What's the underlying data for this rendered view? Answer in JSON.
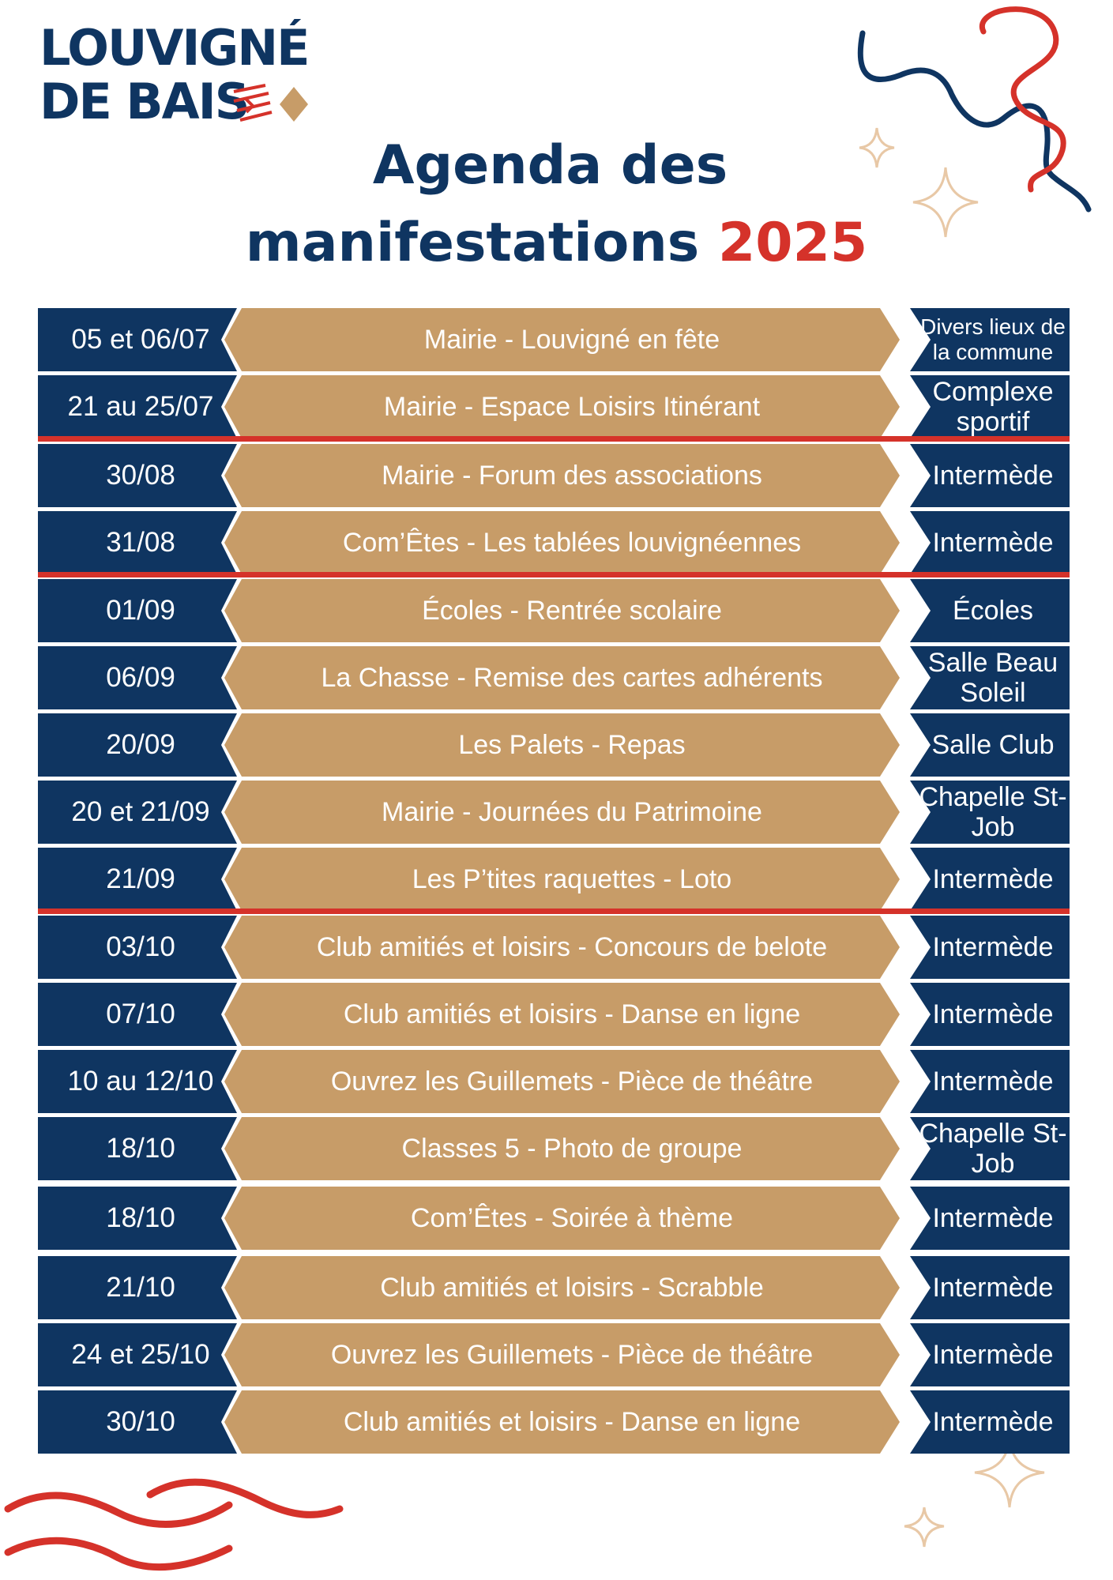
{
  "logo": {
    "line1": "LOUVIGNÉ",
    "line2": "DE BAIS"
  },
  "title": {
    "line1": "Agenda des",
    "line2_text": "manifestations",
    "year": "2025"
  },
  "colors": {
    "navy": "#0f3561",
    "tan": "#c79c68",
    "red": "#d5322a"
  },
  "agenda": [
    {
      "date": "05 et 06/07",
      "event": "Mairie - Louvigné en fête",
      "place": "Divers lieux de la commune"
    },
    {
      "date": "21 au 25/07",
      "event": "Mairie - Espace Loisirs Itinérant",
      "place": "Complexe sportif"
    },
    {
      "date": "30/08",
      "event": "Mairie - Forum des associations",
      "place": "Intermède"
    },
    {
      "date": "31/08",
      "event": "Com’Êtes - Les tablées louvignéennes",
      "place": "Intermède"
    },
    {
      "date": "01/09",
      "event": "Écoles - Rentrée scolaire",
      "place": "Écoles"
    },
    {
      "date": "06/09",
      "event": "La Chasse - Remise des cartes adhérents",
      "place": "Salle Beau Soleil"
    },
    {
      "date": "20/09",
      "event": "Les Palets - Repas",
      "place": "Salle Club"
    },
    {
      "date": "20 et 21/09",
      "event": "Mairie - Journées du Patrimoine",
      "place": "Chapelle St-Job"
    },
    {
      "date": "21/09",
      "event": "Les P’tites raquettes - Loto",
      "place": "Intermède"
    },
    {
      "date": "03/10",
      "event": "Club amitiés et loisirs - Concours de belote",
      "place": "Intermède"
    },
    {
      "date": "07/10",
      "event": "Club amitiés et loisirs - Danse en ligne",
      "place": "Intermède"
    },
    {
      "date": "10 au 12/10",
      "event": "Ouvrez les Guillemets - Pièce de théâtre",
      "place": "Intermède"
    },
    {
      "date": "18/10",
      "event": "Classes 5 - Photo de groupe",
      "place": "Chapelle St-Job"
    },
    {
      "date": "18/10",
      "event": "Com’Êtes - Soirée à thème",
      "place": "Intermède"
    },
    {
      "date": "21/10",
      "event": "Club amitiés et loisirs - Scrabble",
      "place": "Intermède"
    },
    {
      "date": "24 et 25/10",
      "event": "Ouvrez les Guillemets - Pièce de théâtre",
      "place": "Intermède"
    },
    {
      "date": "30/10",
      "event": "Club amitiés et loisirs - Danse en ligne",
      "place": "Intermède"
    }
  ]
}
